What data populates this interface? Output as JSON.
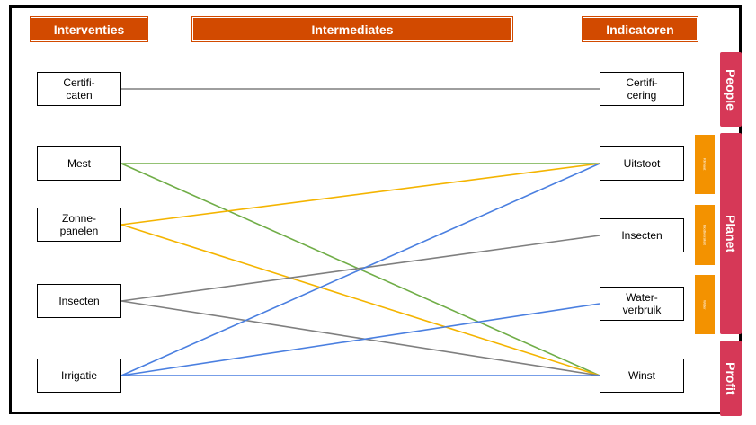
{
  "headers": {
    "interventies": "Interventies",
    "intermediates": "Intermediates",
    "indicatoren": "Indicatoren"
  },
  "interventions": {
    "certificaten": "Certifi-\ncaten",
    "mest": "Mest",
    "zonnepanelen": "Zonne-\npanelen",
    "insecten": "Insecten",
    "irrigatie": "Irrigatie"
  },
  "indicators": {
    "certificering": "Certifi-\ncering",
    "uitstoot": "Uitstoot",
    "insecten": "Insecten",
    "waterverbruik": "Water-\nverbruik",
    "winst": "Winst"
  },
  "categories": {
    "people": "People",
    "planet": "Planet",
    "profit": "Profit"
  },
  "subcategories": {
    "klimaat": "Klimaat",
    "biodiversiteit": "Biodiversiteit",
    "water": "Water"
  },
  "colors": {
    "header": "#d24a00",
    "category": "#d63857",
    "subcategory": "#f39200",
    "link_gray": "#7f7f7f",
    "link_green": "#70ad47",
    "link_yellow": "#f4b400",
    "link_blue": "#4a7fe0"
  },
  "links": [
    {
      "from": "certificaten",
      "to": "certificering",
      "color": "link_gray"
    },
    {
      "from": "mest",
      "to": "uitstoot",
      "color": "link_green"
    },
    {
      "from": "mest",
      "to": "winst",
      "color": "link_green"
    },
    {
      "from": "zonnepanelen",
      "to": "uitstoot",
      "color": "link_yellow"
    },
    {
      "from": "zonnepanelen",
      "to": "winst",
      "color": "link_yellow"
    },
    {
      "from": "insecten",
      "to": "insecten",
      "color": "link_gray"
    },
    {
      "from": "insecten",
      "to": "winst",
      "color": "link_gray"
    },
    {
      "from": "irrigatie",
      "to": "uitstoot",
      "color": "link_blue"
    },
    {
      "from": "irrigatie",
      "to": "waterverbruik",
      "color": "link_blue"
    },
    {
      "from": "irrigatie",
      "to": "winst",
      "color": "link_blue"
    }
  ]
}
